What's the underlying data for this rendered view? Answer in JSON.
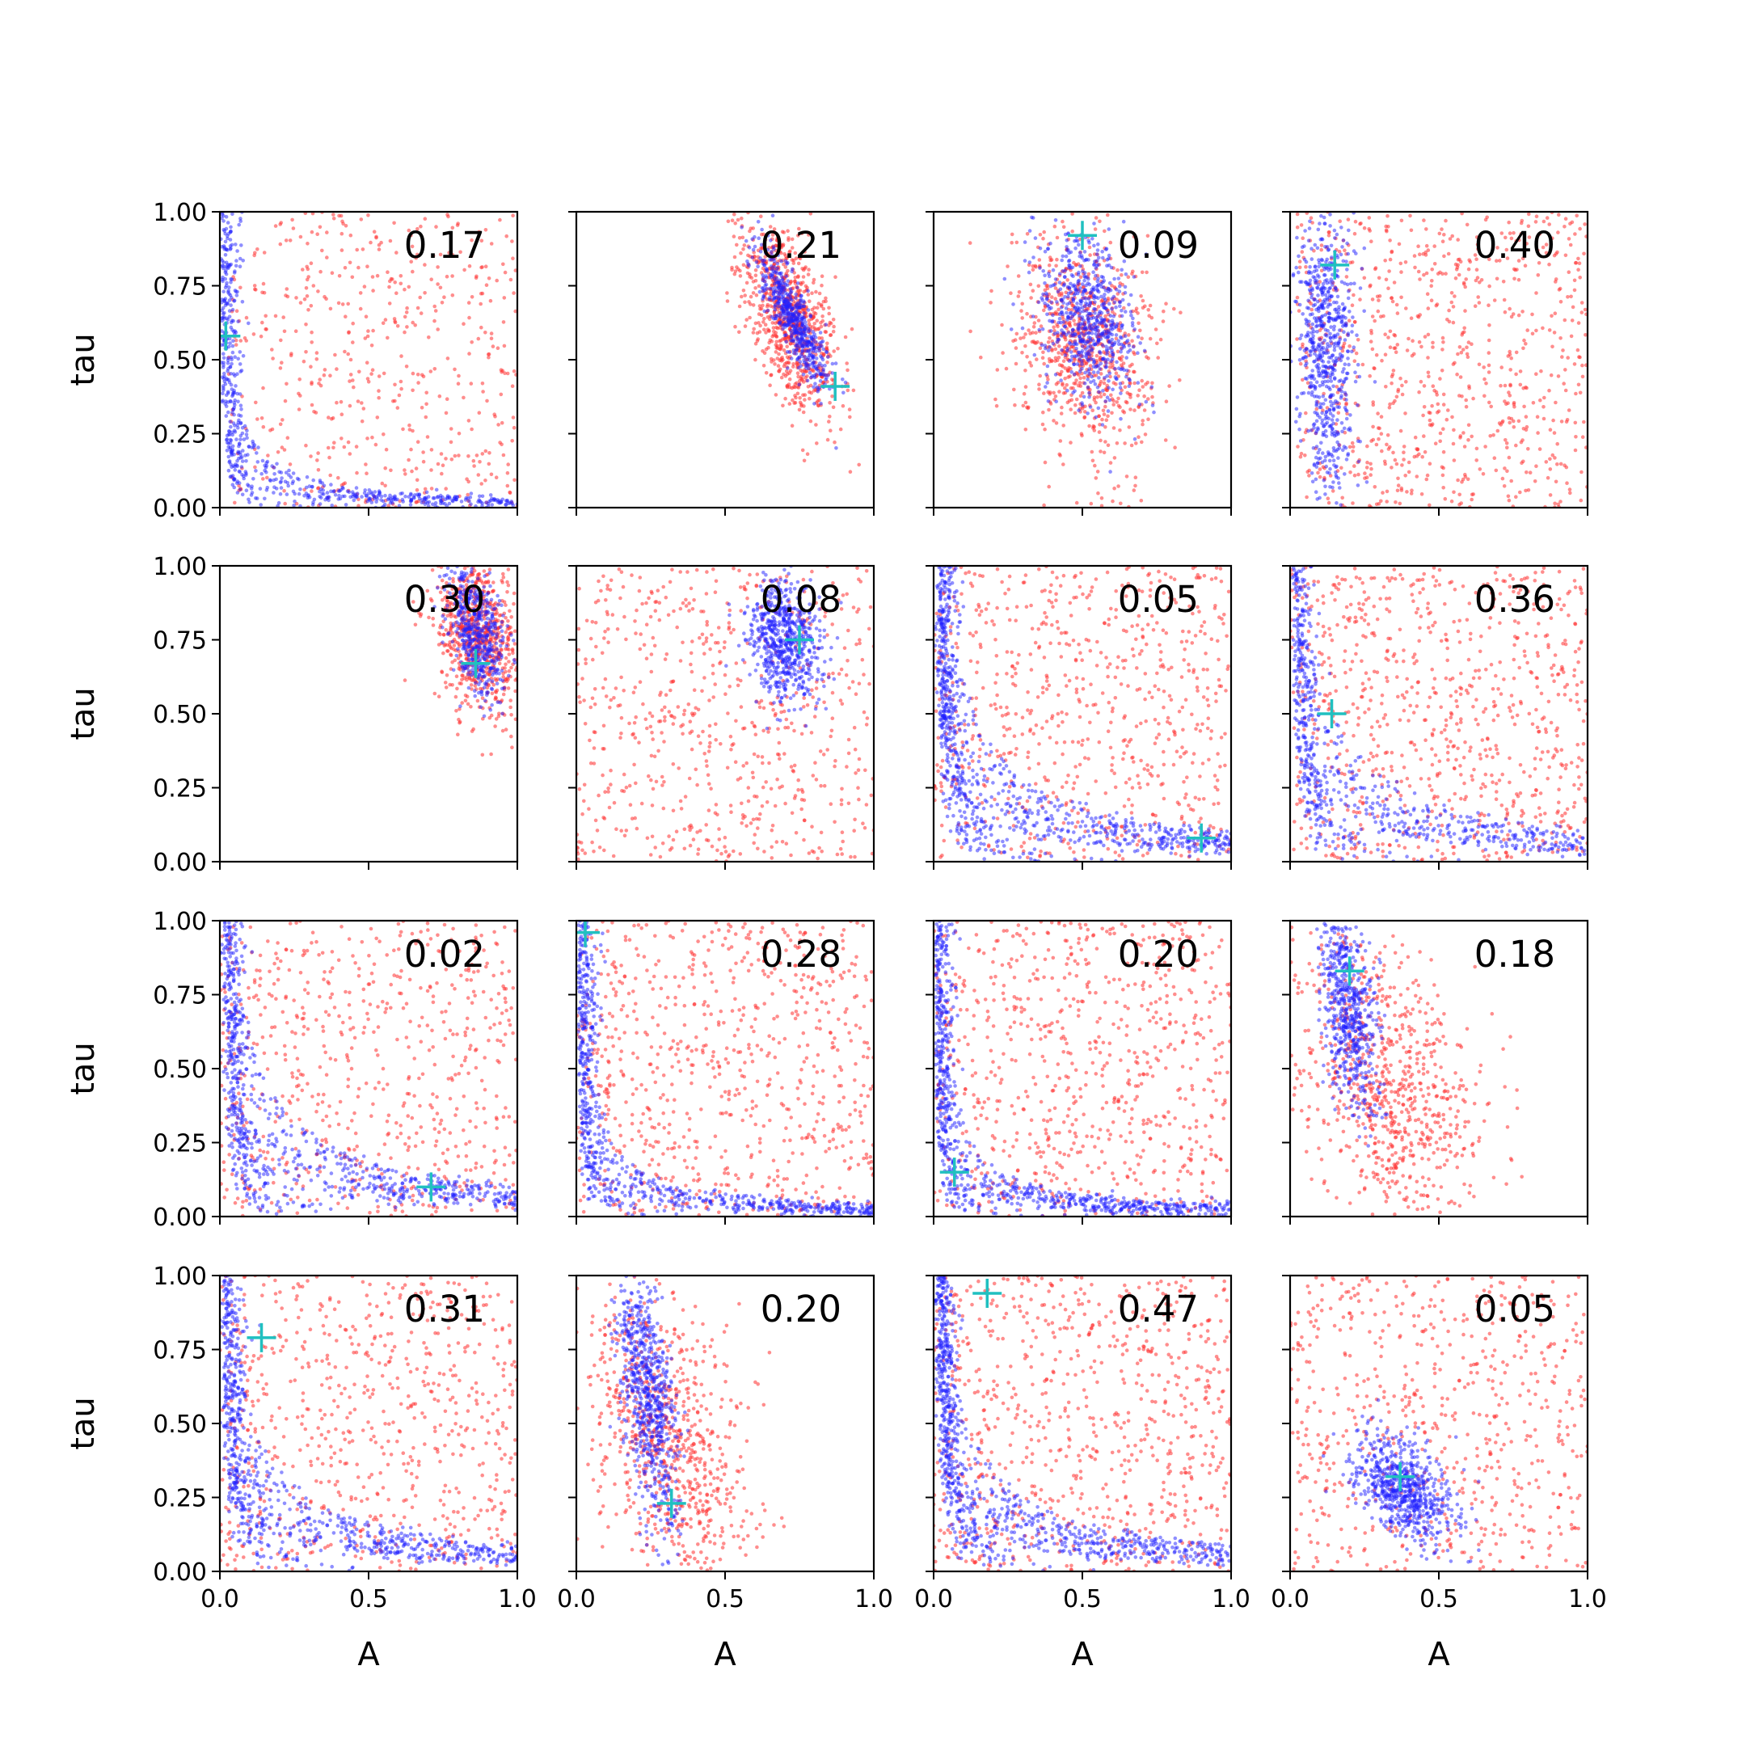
{
  "chart_data": {
    "type": "scatter",
    "grid": false,
    "rows": 4,
    "cols": 4,
    "xlabel": "A",
    "ylabel": "tau",
    "xlim": [
      0,
      1
    ],
    "ylim": [
      0,
      1
    ],
    "x_ticks": [
      0.0,
      0.5,
      1.0
    ],
    "x_tick_labels": [
      "0.0",
      "0.5",
      "1.0"
    ],
    "y_ticks": [
      0.0,
      0.25,
      0.5,
      0.75,
      1.0
    ],
    "y_tick_labels": [
      "0.00",
      "0.25",
      "0.50",
      "0.75",
      "1.00"
    ],
    "series_colors": {
      "broad": "#ff3030",
      "fit": "#2020ff",
      "truth_marker": "#20c0c0"
    },
    "panels": [
      {
        "annotation": "0.17",
        "truth": [
          0.02,
          0.58
        ],
        "red": {
          "shape": "box",
          "x": [
            0.03,
            1.0
          ],
          "y": [
            0.0,
            1.0
          ],
          "n": 520
        },
        "blue": {
          "shape": "curve",
          "k": 0.02,
          "n": 650
        }
      },
      {
        "annotation": "0.21",
        "truth": [
          0.87,
          0.41
        ],
        "red": {
          "shape": "blob",
          "cx": 0.72,
          "cy": 0.64,
          "sx": 0.08,
          "sy": 0.16,
          "rho": -0.55,
          "n": 850
        },
        "blue": {
          "shape": "blob",
          "cx": 0.73,
          "cy": 0.64,
          "sx": 0.06,
          "sy": 0.12,
          "rho": -0.85,
          "n": 550
        }
      },
      {
        "annotation": "0.09",
        "truth": [
          0.5,
          0.92
        ],
        "red": {
          "shape": "blob",
          "cx": 0.5,
          "cy": 0.55,
          "sx": 0.11,
          "sy": 0.2,
          "rho": -0.2,
          "n": 800
        },
        "blue": {
          "shape": "blob",
          "cx": 0.52,
          "cy": 0.64,
          "sx": 0.08,
          "sy": 0.14,
          "rho": -0.35,
          "n": 650
        }
      },
      {
        "annotation": "0.40",
        "truth": [
          0.15,
          0.82
        ],
        "red": {
          "shape": "box",
          "x": [
            0.02,
            1.0
          ],
          "y": [
            0.0,
            1.0
          ],
          "n": 800
        },
        "blue": {
          "shape": "blob",
          "cx": 0.12,
          "cy": 0.55,
          "sx": 0.05,
          "sy": 0.25,
          "rho": -0.2,
          "n": 700
        }
      },
      {
        "annotation": "0.30",
        "truth": [
          0.86,
          0.67
        ],
        "red": {
          "shape": "blob",
          "cx": 0.87,
          "cy": 0.76,
          "sx": 0.07,
          "sy": 0.14,
          "rho": -0.3,
          "n": 750
        },
        "blue": {
          "shape": "blob",
          "cx": 0.86,
          "cy": 0.78,
          "sx": 0.05,
          "sy": 0.11,
          "rho": -0.4,
          "n": 500
        }
      },
      {
        "annotation": "0.08",
        "truth": [
          0.75,
          0.75
        ],
        "red": {
          "shape": "box",
          "x": [
            0.0,
            1.0
          ],
          "y": [
            0.0,
            1.0
          ],
          "n": 650
        },
        "blue": {
          "shape": "blob",
          "cx": 0.7,
          "cy": 0.75,
          "sx": 0.06,
          "sy": 0.1,
          "rho": -0.2,
          "n": 650
        }
      },
      {
        "annotation": "0.05",
        "truth": [
          0.9,
          0.08
        ],
        "red": {
          "shape": "box",
          "x": [
            0.0,
            1.0
          ],
          "y": [
            0.0,
            1.0
          ],
          "n": 700
        },
        "blue": {
          "shape": "curve",
          "k": 0.07,
          "n": 900
        }
      },
      {
        "annotation": "0.36",
        "truth": [
          0.14,
          0.5
        ],
        "red": {
          "shape": "box",
          "x": [
            0.0,
            1.0
          ],
          "y": [
            0.0,
            1.0
          ],
          "n": 800
        },
        "blue": {
          "shape": "curve",
          "k": 0.07,
          "n": 700
        }
      },
      {
        "annotation": "0.02",
        "truth": [
          0.71,
          0.1
        ],
        "red": {
          "shape": "box",
          "x": [
            0.0,
            1.0
          ],
          "y": [
            0.0,
            1.0
          ],
          "n": 650
        },
        "blue": {
          "shape": "curve",
          "k": 0.07,
          "n": 800
        }
      },
      {
        "annotation": "0.28",
        "truth": [
          0.03,
          0.96
        ],
        "red": {
          "shape": "box",
          "x": [
            0.0,
            1.0
          ],
          "y": [
            0.0,
            1.0
          ],
          "n": 750
        },
        "blue": {
          "shape": "curve",
          "k": 0.025,
          "n": 750
        }
      },
      {
        "annotation": "0.20",
        "truth": [
          0.07,
          0.15
        ],
        "red": {
          "shape": "box",
          "x": [
            0.0,
            1.0
          ],
          "y": [
            0.0,
            1.0
          ],
          "n": 750
        },
        "blue": {
          "shape": "curve",
          "k": 0.025,
          "n": 800
        }
      },
      {
        "annotation": "0.18",
        "truth": [
          0.2,
          0.83
        ],
        "red": {
          "shape": "blob",
          "cx": 0.32,
          "cy": 0.45,
          "sx": 0.16,
          "sy": 0.24,
          "rho": -0.35,
          "n": 800
        },
        "blue": {
          "shape": "blob",
          "cx": 0.2,
          "cy": 0.7,
          "sx": 0.05,
          "sy": 0.18,
          "rho": -0.45,
          "n": 600
        }
      },
      {
        "annotation": "0.31",
        "truth": [
          0.14,
          0.79
        ],
        "red": {
          "shape": "box",
          "x": [
            0.0,
            1.0
          ],
          "y": [
            0.0,
            1.0
          ],
          "n": 700
        },
        "blue": {
          "shape": "curve",
          "k": 0.06,
          "n": 800
        }
      },
      {
        "annotation": "0.20",
        "truth": [
          0.32,
          0.23
        ],
        "red": {
          "shape": "blob",
          "cx": 0.3,
          "cy": 0.45,
          "sx": 0.14,
          "sy": 0.26,
          "rho": -0.45,
          "n": 800
        },
        "blue": {
          "shape": "blob",
          "cx": 0.24,
          "cy": 0.58,
          "sx": 0.05,
          "sy": 0.22,
          "rho": -0.55,
          "n": 700
        }
      },
      {
        "annotation": "0.47",
        "truth": [
          0.18,
          0.94
        ],
        "red": {
          "shape": "box",
          "x": [
            0.0,
            1.0
          ],
          "y": [
            0.0,
            1.0
          ],
          "n": 800
        },
        "blue": {
          "shape": "curve",
          "k": 0.06,
          "n": 900
        }
      },
      {
        "annotation": "0.05",
        "truth": [
          0.37,
          0.32
        ],
        "red": {
          "shape": "box",
          "x": [
            0.0,
            1.0
          ],
          "y": [
            0.0,
            1.0
          ],
          "n": 650
        },
        "blue": {
          "shape": "blob",
          "cx": 0.38,
          "cy": 0.28,
          "sx": 0.09,
          "sy": 0.09,
          "rho": -0.5,
          "n": 700
        }
      }
    ]
  }
}
